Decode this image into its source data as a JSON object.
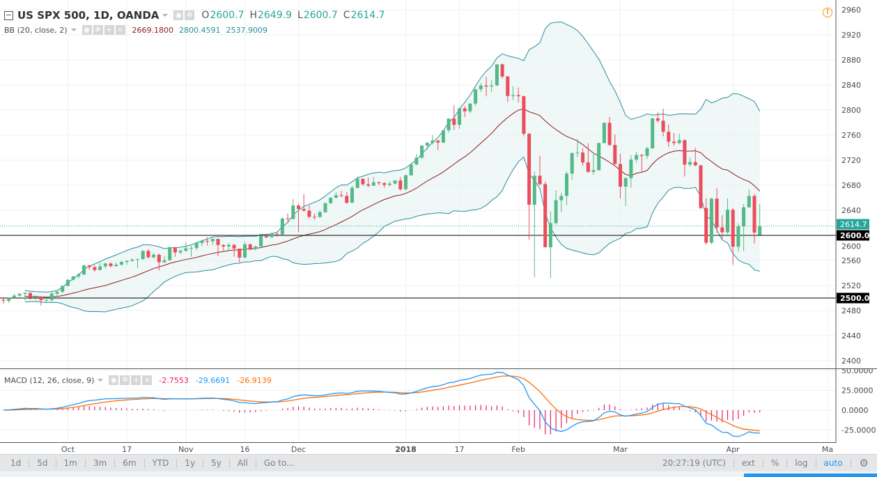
{
  "header": {
    "symbol_title": "US SPX 500, 1D, OANDA",
    "ohlc": {
      "o_label": "O",
      "o": "2600.7",
      "h_label": "H",
      "h": "2649.9",
      "l_label": "L",
      "l": "2600.7",
      "c_label": "C",
      "c": "2614.7"
    },
    "bb": {
      "title": "BB (20, close, 2)",
      "basis": "2669.1800",
      "upper": "2800.4591",
      "lower": "2537.9009"
    },
    "macd": {
      "title": "MACD (12, 26, close, 9)",
      "hist": "-2.7553",
      "macd": "-29.6691",
      "signal": "-26.9139"
    },
    "alert_icon": "warning-circle-icon"
  },
  "colors": {
    "up": "#53b987",
    "down": "#eb4d5c",
    "bb_band": "#2a8c9c",
    "bb_basis": "#8e1c1c",
    "bb_fill": "#e8f4f4",
    "macd": "#2196f3",
    "signal": "#ff6d00",
    "hist": "#e91e63",
    "last_price": "#26a69a",
    "hline": "#000000"
  },
  "chart_data": [
    {
      "type": "candlestick",
      "symbol": "US SPX 500",
      "interval": "1D",
      "ylim": [
        2390,
        2970
      ],
      "yticks": [
        2400,
        2440,
        2480,
        2520,
        2560,
        2600,
        2640,
        2680,
        2720,
        2760,
        2800,
        2840,
        2880,
        2920,
        2960
      ],
      "grid": true,
      "horizontal_lines": [
        {
          "value": 2600.0,
          "label": "2600.0"
        },
        {
          "value": 2500.0,
          "label": "2500.0"
        }
      ],
      "last_price": {
        "value": 2614.7,
        "label": "2614.7"
      },
      "indicators": [
        {
          "name": "BB",
          "length": 20,
          "source": "close",
          "mult": 2
        }
      ],
      "x_labels": [
        {
          "label": "Oct",
          "date": "2017-10-02",
          "bold": false
        },
        {
          "label": "17",
          "date": "2017-10-17",
          "bold": false
        },
        {
          "label": "Nov",
          "date": "2017-11-01",
          "bold": false
        },
        {
          "label": "16",
          "date": "2017-11-16",
          "bold": false
        },
        {
          "label": "Dec",
          "date": "2017-12-01",
          "bold": false
        },
        {
          "label": "2018",
          "date": "2018-01-02",
          "bold": true
        },
        {
          "label": "17",
          "date": "2018-01-17",
          "bold": false
        },
        {
          "label": "Feb",
          "date": "2018-02-01",
          "bold": false
        },
        {
          "label": "Mar",
          "date": "2018-03-01",
          "bold": false
        },
        {
          "label": "Apr",
          "date": "2018-04-02",
          "bold": false
        },
        {
          "label": "Ma",
          "date": "2018-05-01",
          "bold": false
        }
      ],
      "columns": [
        "date",
        "open",
        "high",
        "low",
        "close"
      ],
      "candles": [
        [
          "2017-09-14",
          2497,
          2499,
          2491,
          2495.6
        ],
        [
          "2017-09-15",
          2495.6,
          2501,
          2492,
          2500.2
        ],
        [
          "2017-09-18",
          2500.2,
          2507,
          2499,
          2503.9
        ],
        [
          "2017-09-19",
          2503.9,
          2508,
          2502,
          2506.6
        ],
        [
          "2017-09-20",
          2506.6,
          2509,
          2496,
          2508.2
        ],
        [
          "2017-09-21",
          2508.2,
          2509,
          2497,
          2500.6
        ],
        [
          "2017-09-22",
          2500.6,
          2504,
          2497,
          2502.2
        ],
        [
          "2017-09-25",
          2502.2,
          2503,
          2488,
          2496.7
        ],
        [
          "2017-09-26",
          2496.7,
          2503,
          2492,
          2496.8
        ],
        [
          "2017-09-27",
          2496.8,
          2511,
          2495,
          2507.0
        ],
        [
          "2017-09-28",
          2507.0,
          2511,
          2502,
          2510.1
        ],
        [
          "2017-09-29",
          2510.1,
          2520,
          2508,
          2519.4
        ],
        [
          "2017-10-02",
          2519.4,
          2530,
          2519,
          2529.1
        ],
        [
          "2017-10-03",
          2529.1,
          2535,
          2528,
          2534.6
        ],
        [
          "2017-10-04",
          2534.6,
          2540,
          2531,
          2537.7
        ],
        [
          "2017-10-05",
          2537.7,
          2553,
          2536,
          2552.1
        ],
        [
          "2017-10-06",
          2552.1,
          2553,
          2545,
          2549.3
        ],
        [
          "2017-10-09",
          2549.3,
          2552,
          2542,
          2544.7
        ],
        [
          "2017-10-10",
          2544.7,
          2556,
          2544,
          2550.6
        ],
        [
          "2017-10-11",
          2550.6,
          2556,
          2547,
          2555.2
        ],
        [
          "2017-10-12",
          2555.2,
          2557,
          2549,
          2550.9
        ],
        [
          "2017-10-13",
          2550.9,
          2557,
          2550,
          2553.2
        ],
        [
          "2017-10-16",
          2553.2,
          2559,
          2552,
          2557.6
        ],
        [
          "2017-10-17",
          2557.6,
          2560,
          2553,
          2559.4
        ],
        [
          "2017-10-18",
          2559.4,
          2563,
          2558,
          2561.3
        ],
        [
          "2017-10-19",
          2561.3,
          2563,
          2548,
          2562.1
        ],
        [
          "2017-10-20",
          2562.1,
          2576,
          2561,
          2575.2
        ],
        [
          "2017-10-23",
          2575.2,
          2578,
          2563,
          2565.0
        ],
        [
          "2017-10-24",
          2565.0,
          2572,
          2563,
          2569.1
        ],
        [
          "2017-10-25",
          2569.1,
          2571,
          2544,
          2557.2
        ],
        [
          "2017-10-26",
          2557.2,
          2567,
          2556,
          2560.4
        ],
        [
          "2017-10-27",
          2560.4,
          2582,
          2559,
          2581.1
        ],
        [
          "2017-10-30",
          2581.1,
          2581,
          2566,
          2572.8
        ],
        [
          "2017-10-31",
          2572.8,
          2578,
          2570,
          2575.3
        ],
        [
          "2017-11-01",
          2575.3,
          2589,
          2574,
          2579.4
        ],
        [
          "2017-11-02",
          2579.4,
          2583,
          2566,
          2579.9
        ],
        [
          "2017-11-03",
          2579.9,
          2588,
          2576,
          2587.8
        ],
        [
          "2017-11-06",
          2587.8,
          2593,
          2583,
          2591.1
        ],
        [
          "2017-11-07",
          2591.1,
          2597,
          2584,
          2590.6
        ],
        [
          "2017-11-08",
          2590.6,
          2595,
          2585,
          2594.4
        ],
        [
          "2017-11-09",
          2594.4,
          2594,
          2567,
          2584.6
        ],
        [
          "2017-11-10",
          2584.6,
          2586,
          2576,
          2582.3
        ],
        [
          "2017-11-13",
          2582.3,
          2588,
          2575,
          2584.8
        ],
        [
          "2017-11-14",
          2584.8,
          2586,
          2566,
          2578.9
        ],
        [
          "2017-11-15",
          2578.9,
          2579,
          2557,
          2564.6
        ],
        [
          "2017-11-16",
          2564.6,
          2590,
          2564,
          2585.6
        ],
        [
          "2017-11-17",
          2585.6,
          2587,
          2576,
          2578.9
        ],
        [
          "2017-11-20",
          2578.9,
          2584,
          2576,
          2582.1
        ],
        [
          "2017-11-21",
          2582.1,
          2600,
          2582,
          2599.0
        ],
        [
          "2017-11-22",
          2599.0,
          2601,
          2595,
          2597.1
        ],
        [
          "2017-11-24",
          2597.1,
          2605,
          2596,
          2602.4
        ],
        [
          "2017-11-27",
          2602.4,
          2606,
          2598,
          2601.4
        ],
        [
          "2017-11-28",
          2601.4,
          2628,
          2601,
          2627.0
        ],
        [
          "2017-11-29",
          2627.0,
          2635,
          2620,
          2626.1
        ],
        [
          "2017-11-30",
          2626.1,
          2658,
          2626,
          2647.6
        ],
        [
          "2017-12-01",
          2647.6,
          2650,
          2605,
          2642.2
        ],
        [
          "2017-12-04",
          2642.2,
          2666,
          2638,
          2639.4
        ],
        [
          "2017-12-05",
          2639.4,
          2648,
          2627,
          2629.6
        ],
        [
          "2017-12-06",
          2629.6,
          2635,
          2625,
          2629.3
        ],
        [
          "2017-12-07",
          2629.3,
          2640,
          2628,
          2637.0
        ],
        [
          "2017-12-08",
          2637.0,
          2652,
          2636,
          2651.5
        ],
        [
          "2017-12-11",
          2651.5,
          2661,
          2650,
          2660.0
        ],
        [
          "2017-12-12",
          2660.0,
          2669,
          2659,
          2664.1
        ],
        [
          "2017-12-13",
          2664.1,
          2671,
          2661,
          2662.9
        ],
        [
          "2017-12-14",
          2662.9,
          2669,
          2650,
          2652.0
        ],
        [
          "2017-12-15",
          2652.0,
          2679,
          2652,
          2675.8
        ],
        [
          "2017-12-18",
          2675.8,
          2694,
          2675,
          2690.2
        ],
        [
          "2017-12-19",
          2690.2,
          2691,
          2679,
          2681.5
        ],
        [
          "2017-12-20",
          2681.5,
          2692,
          2677,
          2679.3
        ],
        [
          "2017-12-21",
          2679.3,
          2693,
          2679,
          2684.6
        ],
        [
          "2017-12-22",
          2684.6,
          2686,
          2680,
          2683.3
        ],
        [
          "2017-12-26",
          2683.3,
          2685,
          2676,
          2680.5
        ],
        [
          "2017-12-27",
          2680.5,
          2686,
          2678,
          2682.6
        ],
        [
          "2017-12-28",
          2682.6,
          2688,
          2681,
          2687.5
        ],
        [
          "2017-12-29",
          2687.5,
          2693,
          2671,
          2673.6
        ],
        [
          "2018-01-02",
          2673.6,
          2697,
          2672,
          2695.8
        ],
        [
          "2018-01-03",
          2695.8,
          2715,
          2695,
          2713.1
        ],
        [
          "2018-01-04",
          2713.1,
          2730,
          2712,
          2724.0
        ],
        [
          "2018-01-05",
          2724.0,
          2744,
          2722,
          2743.2
        ],
        [
          "2018-01-08",
          2743.2,
          2749,
          2737,
          2747.7
        ],
        [
          "2018-01-09",
          2747.7,
          2760,
          2745,
          2751.3
        ],
        [
          "2018-01-10",
          2751.3,
          2752,
          2736,
          2748.2
        ],
        [
          "2018-01-11",
          2748.2,
          2768,
          2747,
          2767.6
        ],
        [
          "2018-01-12",
          2767.6,
          2787,
          2764,
          2786.2
        ],
        [
          "2018-01-16",
          2786.2,
          2808,
          2768,
          2776.4
        ],
        [
          "2018-01-17",
          2776.4,
          2803,
          2770,
          2802.6
        ],
        [
          "2018-01-18",
          2802.6,
          2806,
          2789,
          2798.0
        ],
        [
          "2018-01-19",
          2798.0,
          2811,
          2795,
          2810.3
        ],
        [
          "2018-01-22",
          2810.3,
          2834,
          2806,
          2833.0
        ],
        [
          "2018-01-23",
          2833.0,
          2843,
          2829,
          2839.1
        ],
        [
          "2018-01-24",
          2839.1,
          2853,
          2822,
          2837.5
        ],
        [
          "2018-01-25",
          2837.5,
          2848,
          2829,
          2839.3
        ],
        [
          "2018-01-26",
          2839.3,
          2873,
          2838,
          2872.9
        ],
        [
          "2018-01-29",
          2872.9,
          2874,
          2850,
          2853.5
        ],
        [
          "2018-01-30",
          2853.5,
          2854,
          2813,
          2822.4
        ],
        [
          "2018-01-31",
          2822.4,
          2838,
          2816,
          2823.8
        ],
        [
          "2018-02-01",
          2823.8,
          2836,
          2812,
          2822.0
        ],
        [
          "2018-02-02",
          2822.0,
          2823,
          2758,
          2762.1
        ],
        [
          "2018-02-05",
          2762.1,
          2763,
          2593,
          2648.9
        ],
        [
          "2018-02-06",
          2648.9,
          2702,
          2533,
          2695.1
        ],
        [
          "2018-02-07",
          2695.1,
          2727,
          2680,
          2681.7
        ],
        [
          "2018-02-08",
          2681.7,
          2686,
          2581,
          2581.0
        ],
        [
          "2018-02-09",
          2581.0,
          2638,
          2532,
          2619.6
        ],
        [
          "2018-02-12",
          2619.6,
          2672,
          2617,
          2656.0
        ],
        [
          "2018-02-13",
          2656.0,
          2668,
          2637,
          2662.9
        ],
        [
          "2018-02-14",
          2662.9,
          2702,
          2648,
          2698.6
        ],
        [
          "2018-02-15",
          2698.6,
          2732,
          2689,
          2731.2
        ],
        [
          "2018-02-16",
          2731.2,
          2754,
          2725,
          2732.2
        ],
        [
          "2018-02-20",
          2732.2,
          2739,
          2711,
          2716.3
        ],
        [
          "2018-02-21",
          2716.3,
          2747,
          2700,
          2701.3
        ],
        [
          "2018-02-22",
          2701.3,
          2732,
          2697,
          2704.0
        ],
        [
          "2018-02-23",
          2704.0,
          2748,
          2703,
          2747.3
        ],
        [
          "2018-02-26",
          2747.3,
          2780,
          2747,
          2779.6
        ],
        [
          "2018-02-27",
          2779.6,
          2789,
          2743,
          2744.3
        ],
        [
          "2018-02-28",
          2744.3,
          2761,
          2713,
          2713.8
        ],
        [
          "2018-03-01",
          2713.8,
          2730,
          2659,
          2677.7
        ],
        [
          "2018-03-02",
          2677.7,
          2693,
          2647,
          2691.3
        ],
        [
          "2018-03-05",
          2691.3,
          2728,
          2676,
          2720.9
        ],
        [
          "2018-03-06",
          2720.9,
          2733,
          2716,
          2728.1
        ],
        [
          "2018-03-07",
          2728.1,
          2730,
          2702,
          2726.8
        ],
        [
          "2018-03-08",
          2726.8,
          2741,
          2722,
          2739.0
        ],
        [
          "2018-03-09",
          2739.0,
          2787,
          2738,
          2786.6
        ],
        [
          "2018-03-12",
          2786.6,
          2797,
          2780,
          2783.0
        ],
        [
          "2018-03-13",
          2783.0,
          2802,
          2758,
          2765.3
        ],
        [
          "2018-03-14",
          2765.3,
          2777,
          2741,
          2749.5
        ],
        [
          "2018-03-15",
          2749.5,
          2763,
          2743,
          2747.3
        ],
        [
          "2018-03-16",
          2747.3,
          2762,
          2745,
          2752.0
        ],
        [
          "2018-03-19",
          2752.0,
          2753,
          2694,
          2712.9
        ],
        [
          "2018-03-20",
          2712.9,
          2724,
          2710,
          2716.9
        ],
        [
          "2018-03-21",
          2716.9,
          2740,
          2710,
          2711.9
        ],
        [
          "2018-03-22",
          2711.9,
          2712,
          2642,
          2643.7
        ],
        [
          "2018-03-23",
          2643.7,
          2659,
          2585,
          2588.3
        ],
        [
          "2018-03-26",
          2588.3,
          2660,
          2586,
          2658.6
        ],
        [
          "2018-03-27",
          2658.6,
          2675,
          2604,
          2612.6
        ],
        [
          "2018-03-28",
          2612.6,
          2632,
          2593,
          2605.0
        ],
        [
          "2018-03-29",
          2605.0,
          2659,
          2602,
          2640.9
        ],
        [
          "2018-04-02",
          2640.9,
          2644,
          2553,
          2581.9
        ],
        [
          "2018-04-03",
          2581.9,
          2619,
          2574,
          2614.5
        ],
        [
          "2018-04-04",
          2614.5,
          2650,
          2575,
          2644.7
        ],
        [
          "2018-04-05",
          2644.7,
          2673,
          2644,
          2662.8
        ],
        [
          "2018-04-06",
          2662.8,
          2666,
          2587,
          2604.5
        ],
        [
          "2018-04-09",
          2600.7,
          2649.9,
          2600.7,
          2614.7
        ]
      ]
    },
    {
      "type": "macd",
      "params": {
        "fast": 12,
        "slow": 26,
        "source": "close",
        "signal": 9
      },
      "ylim": [
        -37,
        52
      ],
      "yticks": [
        {
          "value": 50,
          "label": "50.0000"
        },
        {
          "value": 25,
          "label": "25.0000"
        },
        {
          "value": 0,
          "label": "0.0000"
        },
        {
          "value": -25,
          "label": "-25.0000"
        }
      ]
    }
  ],
  "toolbar": {
    "ranges": [
      "1d",
      "5d",
      "1m",
      "3m",
      "6m",
      "YTD",
      "1y",
      "5y",
      "All",
      "Go to..."
    ],
    "clock": "20:27:19 (UTC)",
    "ext": "ext",
    "percent": "%",
    "log": "log",
    "auto": "auto",
    "settings_icon": "gear-icon"
  }
}
